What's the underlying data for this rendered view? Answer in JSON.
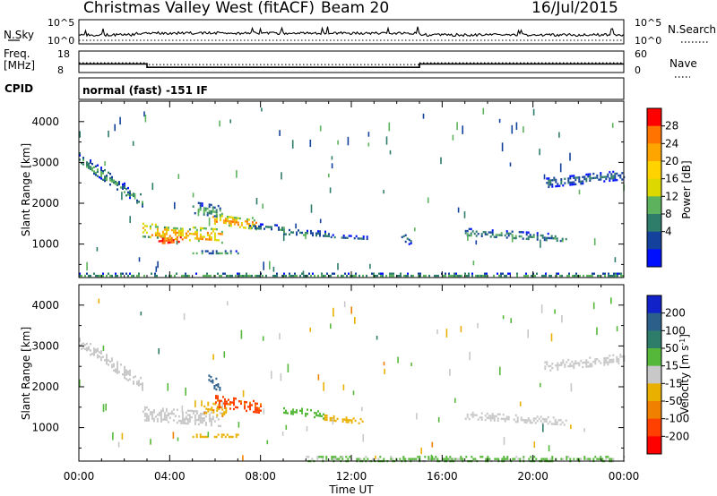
{
  "header": {
    "title": "Christmas Valley West (fitACF)",
    "beam": "Beam 20",
    "date": "16/Jul/2015"
  },
  "strip": {
    "nsky_label": "N.Sky",
    "nsearch_label": "N.Search",
    "noise_ticks": [
      "10^5",
      "10^0"
    ],
    "freq_label_1": "Freq.",
    "freq_label_2": "[MHz]",
    "freq_ticks": [
      "18",
      "8"
    ],
    "nave_label": "Nave",
    "nave_ticks": [
      "60",
      "0"
    ],
    "cpid_label": "CPID",
    "cpid_value": "normal (fast) -151 IF",
    "freq_mhz_series": [
      [
        0,
        12
      ],
      [
        3,
        12
      ],
      [
        3,
        10.4
      ],
      [
        15,
        10.4
      ],
      [
        15,
        12
      ],
      [
        24,
        12
      ]
    ],
    "nave_series": [
      [
        0,
        27
      ],
      [
        3,
        27
      ],
      [
        3,
        22
      ],
      [
        15,
        22
      ],
      [
        15,
        27
      ],
      [
        24,
        27
      ]
    ]
  },
  "panels": {
    "power": {
      "ylabel": "Slant Range [km]",
      "scale_label": "Power [dB]",
      "scale_ticks": [
        "28",
        "24",
        "20",
        "16",
        "12",
        "8",
        "4"
      ],
      "scale_colors": [
        "#ff0000",
        "#ff7300",
        "#ffa500",
        "#ffd200",
        "#ddd800",
        "#5db35d",
        "#2e7d6b",
        "#14419c",
        "#0010ff"
      ]
    },
    "velocity": {
      "ylabel": "Slant Range [km]",
      "scale_label_main": "Velocity [m s",
      "scale_label_sup": "-1",
      "scale_label_end": "]",
      "scale_ticks": [
        "200",
        "100",
        "50",
        "15",
        "-15",
        "-50",
        "-100",
        "-200"
      ],
      "scale_colors": [
        "#1022c8",
        "#2c5f8a",
        "#2e7d6b",
        "#55b83a",
        "#c8c8c8",
        "#e9b000",
        "#f08000",
        "#ff4000",
        "#ff0000"
      ]
    }
  },
  "xaxis": {
    "label": "Time UT",
    "ticks": [
      "00:00",
      "04:00",
      "08:00",
      "12:00",
      "16:00",
      "20:00",
      "00:00"
    ]
  },
  "chart_data": [
    {
      "type": "heatmap",
      "title": "Power",
      "ylabel": "Slant Range [km]",
      "xlabel": "Time UT",
      "xlim": [
        "00:00",
        "24:00"
      ],
      "ylim": [
        180,
        4500
      ],
      "yticks": [
        1000,
        2000,
        3000,
        4000
      ],
      "zlabel": "Power [dB]",
      "zlim": [
        0,
        32
      ],
      "zticks": [
        4,
        8,
        12,
        16,
        20,
        24,
        28
      ],
      "features": [
        {
          "t0": 0.0,
          "t1": 2.8,
          "r0": 3100,
          "r1": 2050,
          "width": 300,
          "power": 11
        },
        {
          "t0": 2.8,
          "t1": 6.3,
          "r0": 1350,
          "r1": 1200,
          "width": 350,
          "power": 21
        },
        {
          "t0": 3.5,
          "t1": 4.6,
          "r0": 1100,
          "r1": 1150,
          "width": 200,
          "power": 28
        },
        {
          "t0": 5.8,
          "t1": 7.8,
          "r0": 1650,
          "r1": 1500,
          "width": 300,
          "power": 22
        },
        {
          "t0": 5.0,
          "t1": 6.2,
          "r0": 1900,
          "r1": 1800,
          "width": 300,
          "power": 12
        },
        {
          "t0": 5.0,
          "t1": 7.0,
          "r0": 800,
          "r1": 800,
          "width": 100,
          "power": 10
        },
        {
          "t0": 7.5,
          "t1": 9.0,
          "r0": 1450,
          "r1": 1400,
          "width": 150,
          "power": 9
        },
        {
          "t0": 9.0,
          "t1": 11.0,
          "r0": 1300,
          "r1": 1250,
          "width": 150,
          "power": 9
        },
        {
          "t0": 11.0,
          "t1": 12.8,
          "r0": 1200,
          "r1": 1150,
          "width": 100,
          "power": 8
        },
        {
          "t0": 14.2,
          "t1": 14.6,
          "r0": 1200,
          "r1": 1050,
          "width": 200,
          "power": 7
        },
        {
          "t0": 17.0,
          "t1": 21.5,
          "r0": 1300,
          "r1": 1150,
          "width": 200,
          "power": 9
        },
        {
          "t0": 20.5,
          "t1": 24.0,
          "r0": 2500,
          "r1": 2700,
          "width": 250,
          "power": 8
        },
        {
          "t0": 0.0,
          "t1": 24.0,
          "r0": 250,
          "r1": 250,
          "width": 100,
          "power": 12
        }
      ]
    },
    {
      "type": "heatmap",
      "title": "Velocity",
      "ylabel": "Slant Range [km]",
      "xlabel": "Time UT",
      "xlim": [
        "00:00",
        "24:00"
      ],
      "ylim": [
        180,
        4500
      ],
      "yticks": [
        1000,
        2000,
        3000,
        4000
      ],
      "zlabel": "Velocity [m s-1]",
      "zlim": [
        -250,
        250
      ],
      "zticks": [
        -200,
        -100,
        -50,
        -15,
        15,
        50,
        100,
        200
      ],
      "features": [
        {
          "t0": 0.0,
          "t1": 2.8,
          "r0": 3100,
          "r1": 2050,
          "width": 300,
          "velocity": 0
        },
        {
          "t0": 2.8,
          "t1": 6.3,
          "r0": 1350,
          "r1": 1200,
          "width": 350,
          "velocity": 0
        },
        {
          "t0": 5.5,
          "t1": 6.5,
          "r0": 1500,
          "r1": 1400,
          "width": 300,
          "velocity": -40
        },
        {
          "t0": 6.0,
          "t1": 8.0,
          "r0": 1650,
          "r1": 1500,
          "width": 300,
          "velocity": -110
        },
        {
          "t0": 5.7,
          "t1": 6.2,
          "r0": 2200,
          "r1": 2000,
          "width": 300,
          "velocity": 150
        },
        {
          "t0": 5.0,
          "t1": 7.0,
          "r0": 800,
          "r1": 800,
          "width": 100,
          "velocity": -30
        },
        {
          "t0": 9.0,
          "t1": 10.8,
          "r0": 1450,
          "r1": 1300,
          "width": 200,
          "velocity": 30
        },
        {
          "t0": 10.8,
          "t1": 12.5,
          "r0": 1250,
          "r1": 1150,
          "width": 150,
          "velocity": -30
        },
        {
          "t0": 17.0,
          "t1": 21.5,
          "r0": 1300,
          "r1": 1150,
          "width": 200,
          "velocity": 0
        },
        {
          "t0": 20.5,
          "t1": 24.0,
          "r0": 2500,
          "r1": 2700,
          "width": 250,
          "velocity": 0
        },
        {
          "t0": 10.0,
          "t1": 24.0,
          "r0": 250,
          "r1": 250,
          "width": 120,
          "velocity": 25
        }
      ]
    }
  ]
}
